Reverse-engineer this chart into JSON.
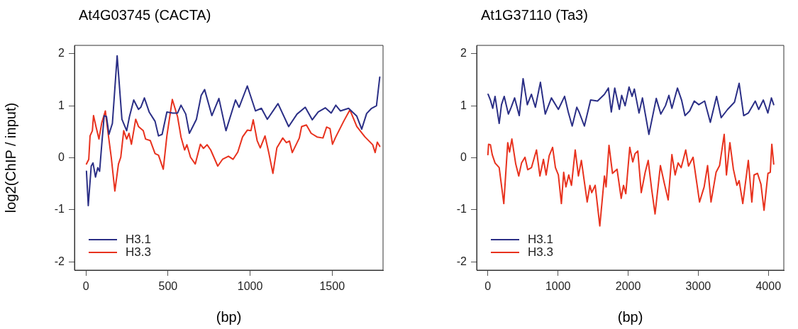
{
  "chart_data": [
    {
      "type": "line",
      "title": "At4G03745 (CACTA)",
      "xlabel": "(bp)",
      "ylabel": "log2(ChIP / input)",
      "xlim": [
        -70,
        1810
      ],
      "ylim": [
        -2.16,
        2.16
      ],
      "xticks": [
        0,
        500,
        1000,
        1500
      ],
      "yticks": [
        -2,
        -1,
        0,
        1,
        2
      ],
      "grid": false,
      "legend": "bottom left",
      "marker": "none",
      "line_style": "solid",
      "series": [
        {
          "name": "H3.1",
          "color": "#2b2f86",
          "x": [
            3,
            14,
            32,
            43,
            58,
            72,
            83,
            96,
            111,
            125,
            140,
            161,
            190,
            219,
            248,
            265,
            291,
            320,
            334,
            356,
            385,
            421,
            442,
            464,
            493,
            529,
            558,
            579,
            608,
            630,
            651,
            673,
            702,
            723,
            767,
            810,
            853,
            911,
            933,
            983,
            1033,
            1069,
            1105,
            1170,
            1235,
            1286,
            1336,
            1379,
            1415,
            1458,
            1494,
            1522,
            1550,
            1600,
            1650,
            1680,
            1710,
            1740,
            1770,
            1790
          ],
          "values": [
            -0.26,
            -0.92,
            -0.16,
            -0.1,
            -0.37,
            -0.19,
            -0.26,
            0.25,
            0.81,
            0.79,
            0.45,
            0.66,
            1.96,
            0.74,
            0.52,
            0.79,
            1.11,
            0.93,
            0.97,
            1.15,
            0.88,
            0.7,
            0.42,
            0.45,
            0.88,
            0.86,
            0.86,
            1.01,
            0.84,
            0.47,
            0.6,
            0.74,
            1.2,
            1.31,
            0.81,
            1.14,
            0.52,
            1.11,
            0.97,
            1.38,
            0.9,
            0.95,
            0.74,
            1.04,
            0.6,
            0.84,
            0.97,
            0.73,
            0.88,
            0.96,
            0.86,
            1.01,
            0.9,
            0.95,
            0.8,
            0.55,
            0.85,
            0.95,
            1.0,
            1.55
          ]
        },
        {
          "name": "H3.3",
          "color": "#e8321e",
          "x": [
            3,
            17,
            25,
            39,
            46,
            61,
            79,
            96,
            118,
            135,
            154,
            176,
            198,
            212,
            230,
            248,
            262,
            277,
            303,
            320,
            349,
            363,
            392,
            421,
            442,
            471,
            493,
            526,
            558,
            579,
            601,
            615,
            637,
            666,
            697,
            716,
            738,
            760,
            803,
            832,
            868,
            896,
            925,
            954,
            983,
            1005,
            1019,
            1043,
            1062,
            1091,
            1113,
            1139,
            1163,
            1199,
            1221,
            1240,
            1257,
            1300,
            1314,
            1343,
            1372,
            1408,
            1444,
            1466,
            1487,
            1502,
            1522,
            1570,
            1608,
            1650,
            1700,
            1747,
            1762,
            1775,
            1790
          ],
          "values": [
            -0.12,
            -0.03,
            0.42,
            0.52,
            0.81,
            0.6,
            0.36,
            0.67,
            0.9,
            0.47,
            0.01,
            -0.64,
            -0.12,
            0.01,
            0.52,
            0.36,
            0.47,
            0.26,
            0.74,
            0.6,
            0.52,
            0.36,
            0.33,
            0.08,
            0.05,
            -0.22,
            0.42,
            1.12,
            0.79,
            0.4,
            0.15,
            0.25,
            0.01,
            -0.12,
            0.26,
            0.18,
            0.25,
            0.15,
            -0.16,
            -0.03,
            0.03,
            -0.03,
            0.11,
            0.4,
            0.53,
            0.52,
            0.73,
            0.33,
            0.19,
            0.42,
            0.11,
            -0.3,
            0.19,
            0.38,
            0.29,
            0.32,
            0.1,
            0.38,
            0.6,
            0.63,
            0.47,
            0.4,
            0.38,
            0.59,
            0.56,
            0.26,
            0.4,
            0.7,
            0.92,
            0.6,
            0.4,
            0.25,
            0.1,
            0.3,
            0.22
          ]
        }
      ]
    },
    {
      "type": "line",
      "title": "At1G37110 (Ta3)",
      "xlabel": "(bp)",
      "xlim": [
        -160,
        4220
      ],
      "ylim": [
        -2.16,
        2.16
      ],
      "xticks": [
        0,
        1000,
        2000,
        3000,
        4000
      ],
      "yticks": [
        -2,
        -1,
        0,
        1,
        2
      ],
      "grid": false,
      "legend": "bottom left",
      "marker": "none",
      "line_style": "solid",
      "series": [
        {
          "name": "H3.1",
          "color": "#2b2f86",
          "x": [
            3,
            36,
            69,
            102,
            161,
            194,
            233,
            292,
            332,
            381,
            447,
            502,
            562,
            621,
            677,
            749,
            818,
            906,
            1005,
            1094,
            1146,
            1202,
            1268,
            1300,
            1376,
            1465,
            1563,
            1662,
            1718,
            1760,
            1809,
            1875,
            1908,
            1957,
            2013,
            2056,
            2089,
            2155,
            2204,
            2296,
            2401,
            2466,
            2532,
            2581,
            2624,
            2703,
            2762,
            2811,
            2877,
            2943,
            3008,
            3091,
            3172,
            3261,
            3327,
            3419,
            3517,
            3583,
            3648,
            3714,
            3813,
            3862,
            3928,
            3993,
            4043,
            4076
          ],
          "values": [
            1.22,
            1.11,
            0.95,
            1.18,
            0.66,
            1.02,
            1.18,
            0.84,
            0.97,
            1.15,
            0.81,
            1.52,
            1.02,
            1.22,
            0.97,
            1.45,
            0.84,
            1.15,
            0.93,
            1.18,
            0.88,
            0.61,
            0.97,
            0.88,
            0.61,
            1.11,
            1.09,
            1.22,
            1.34,
            0.88,
            1.34,
            0.93,
            1.2,
            1.0,
            1.36,
            1.18,
            1.32,
            0.86,
            1.15,
            0.45,
            1.14,
            0.84,
            1.0,
            1.2,
            0.95,
            1.34,
            1.11,
            0.81,
            0.9,
            1.09,
            1.02,
            1.09,
            0.68,
            1.18,
            0.77,
            0.93,
            1.07,
            1.43,
            0.81,
            0.86,
            1.09,
            0.93,
            1.11,
            0.86,
            1.15,
            1.02
          ]
        },
        {
          "name": "H3.3",
          "color": "#e8321e",
          "x": [
            0,
            10,
            36,
            62,
            102,
            161,
            227,
            283,
            309,
            342,
            397,
            440,
            480,
            529,
            568,
            621,
            693,
            742,
            792,
            831,
            874,
            923,
            963,
            1005,
            1048,
            1081,
            1113,
            1153,
            1192,
            1245,
            1291,
            1333,
            1416,
            1455,
            1481,
            1530,
            1596,
            1662,
            1685,
            1727,
            1777,
            1842,
            1901,
            1934,
            1967,
            2023,
            2066,
            2099,
            2138,
            2187,
            2243,
            2286,
            2335,
            2384,
            2460,
            2516,
            2571,
            2624,
            2670,
            2713,
            2756,
            2795,
            2821,
            2861,
            2926,
            3018,
            3084,
            3133,
            3182,
            3254,
            3304,
            3370,
            3402,
            3451,
            3501,
            3551,
            3583,
            3635,
            3714,
            3764,
            3796,
            3845,
            3894,
            3938,
            3994,
            4027,
            4049,
            4076
          ],
          "values": [
            0.06,
            0.26,
            0.25,
            0.06,
            -0.1,
            -0.19,
            -0.88,
            0.29,
            0.11,
            0.36,
            -0.12,
            -0.35,
            -0.1,
            0.01,
            -0.23,
            -0.19,
            0.15,
            -0.35,
            -0.03,
            -0.33,
            0.04,
            0.2,
            -0.19,
            -0.33,
            -0.88,
            -0.28,
            -0.56,
            -0.33,
            -0.53,
            0.15,
            -0.35,
            -0.05,
            -0.85,
            -0.53,
            -0.67,
            -0.53,
            -1.31,
            -0.35,
            -0.56,
            0.24,
            -0.3,
            -0.22,
            -0.78,
            -0.53,
            -0.69,
            0.2,
            -0.08,
            0.08,
            0.13,
            -0.67,
            -0.28,
            -0.05,
            -0.6,
            -1.08,
            -0.15,
            -0.49,
            -0.81,
            0.06,
            -0.33,
            -0.1,
            -0.19,
            0.01,
            0.15,
            -0.16,
            0.01,
            -0.85,
            -0.56,
            -0.15,
            -0.85,
            -0.28,
            -0.15,
            0.45,
            -0.33,
            0.29,
            -0.22,
            -0.53,
            -0.44,
            -0.88,
            -0.05,
            -0.85,
            -0.33,
            -0.3,
            -0.51,
            -1.01,
            -0.3,
            -0.28,
            0.26,
            -0.12
          ]
        }
      ]
    }
  ]
}
